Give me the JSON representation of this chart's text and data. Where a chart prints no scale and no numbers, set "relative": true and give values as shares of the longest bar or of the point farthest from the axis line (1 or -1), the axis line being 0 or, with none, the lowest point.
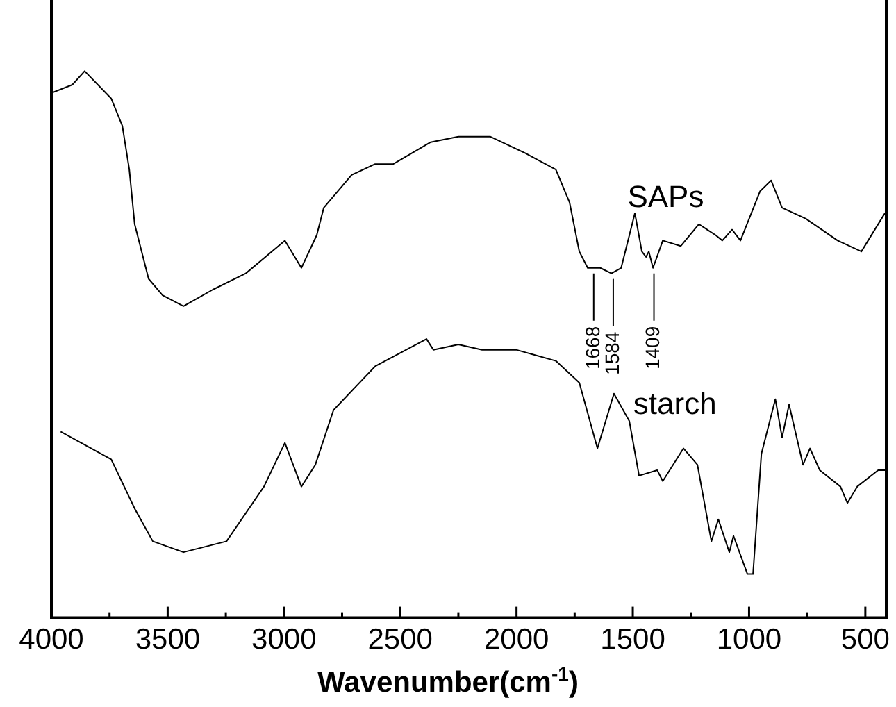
{
  "chart_data": {
    "type": "line",
    "xlabel": "Wavenumber(cm$^{-1}$)",
    "relative": true,
    "grid": false,
    "legend": false,
    "xlim": [
      4000,
      410
    ],
    "xticks": [
      4000,
      {
        "value": 3750,
        "label": null
      },
      3500,
      {
        "value": 3250,
        "label": null
      },
      3000,
      {
        "value": 2750,
        "label": null
      },
      2500,
      {
        "value": 2250,
        "label": null
      },
      2000,
      {
        "value": 1750,
        "label": null
      },
      1500,
      {
        "value": 1250,
        "label": null
      },
      1000,
      {
        "value": 750,
        "label": null
      },
      500
    ],
    "series": [
      {
        "name": "SAPs",
        "color": "#000000",
        "x": [
          4000,
          3910,
          3857,
          3743,
          3695,
          3665,
          3642,
          3582,
          3522,
          3432,
          3307,
          3164,
          2996,
          2925,
          2859,
          2829,
          2709,
          2608,
          2530,
          2369,
          2250,
          2112,
          1963,
          1831,
          1772,
          1730,
          1694,
          1670,
          1640,
          1592,
          1550,
          1491,
          1461,
          1443,
          1431,
          1413,
          1371,
          1294,
          1216,
          1144,
          1115,
          1073,
          1037,
          953,
          905,
          858,
          756,
          619,
          517,
          416
        ],
        "values": [
          0.96,
          0.975,
          1,
          0.95,
          0.9,
          0.82,
          0.72,
          0.62,
          0.59,
          0.57,
          0.6,
          0.63,
          0.69,
          0.64,
          0.7,
          0.75,
          0.81,
          0.83,
          0.83,
          0.87,
          0.88,
          0.88,
          0.85,
          0.82,
          0.76,
          0.67,
          0.64,
          0.64,
          0.64,
          0.63,
          0.64,
          0.74,
          0.67,
          0.66,
          0.67,
          0.64,
          0.69,
          0.68,
          0.72,
          0.7,
          0.69,
          0.71,
          0.69,
          0.78,
          0.8,
          0.75,
          0.73,
          0.69,
          0.67,
          0.74
        ]
      },
      {
        "name": "starch",
        "color": "#000000",
        "x": [
          3958,
          3743,
          3642,
          3564,
          3432,
          3247,
          3086,
          2996,
          2925,
          2865,
          2787,
          2608,
          2387,
          2357,
          2250,
          2148,
          1999,
          1831,
          1730,
          1652,
          1581,
          1515,
          1473,
          1395,
          1371,
          1282,
          1222,
          1162,
          1132,
          1085,
          1067,
          1007,
          983,
          947,
          887,
          858,
          828,
          768,
          738,
          696,
          607,
          577,
          535,
          445,
          415
        ],
        "values": [
          0.34,
          0.29,
          0.2,
          0.14,
          0.12,
          0.14,
          0.24,
          0.32,
          0.24,
          0.28,
          0.38,
          0.46,
          0.51,
          0.49,
          0.5,
          0.49,
          0.49,
          0.47,
          0.43,
          0.31,
          0.41,
          0.36,
          0.26,
          0.27,
          0.25,
          0.31,
          0.28,
          0.14,
          0.18,
          0.12,
          0.15,
          0.08,
          0.08,
          0.3,
          0.4,
          0.33,
          0.39,
          0.28,
          0.31,
          0.27,
          0.24,
          0.21,
          0.24,
          0.27,
          0.27
        ]
      }
    ],
    "annotations": [
      {
        "text": "1668",
        "x": 1668,
        "y": 0.64
      },
      {
        "text": "1584",
        "x": 1584,
        "y": 0.63
      },
      {
        "text": "1409",
        "x": 1409,
        "y": 0.64
      }
    ]
  }
}
